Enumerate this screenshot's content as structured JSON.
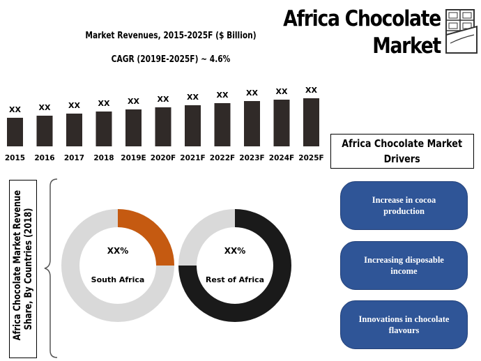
{
  "header": {
    "title_line1": "Africa Chocolate",
    "title_line2": "Market"
  },
  "chart_data": [
    {
      "type": "bar",
      "title": "Market Revenues, 2015-2025F ($ Billion)",
      "subtitle": "CAGR (2019E-2025F) ~ 4.6%",
      "categories": [
        "2015",
        "2016",
        "2017",
        "2018",
        "2019E",
        "2020F",
        "2021F",
        "2022F",
        "2023F",
        "2024F",
        "2025F"
      ],
      "values": [
        41,
        44,
        47,
        50,
        53,
        56,
        59,
        62,
        65,
        67,
        69
      ],
      "data_labels": [
        "XX",
        "XX",
        "XX",
        "XX",
        "XX",
        "XX",
        "XX",
        "XX",
        "XX",
        "XX",
        "XX"
      ],
      "ylim": [
        0,
        100
      ],
      "bar_color": "#302a28"
    },
    {
      "type": "pie",
      "title": "Africa Chocolate Market Revenue Share, By Countries (2018)",
      "donuts": [
        {
          "label": "South Africa",
          "value_label": "XX%",
          "share": 0.25,
          "color": "#c55a11",
          "track_color": "#d9d9d9"
        },
        {
          "label": "Rest of Africa",
          "value_label": "XX%",
          "share": 0.75,
          "color": "#1a1a1a",
          "track_color": "#d9d9d9"
        }
      ]
    }
  ],
  "drivers": {
    "title_line1": "Africa Chocolate Market",
    "title_line2": "Drivers",
    "items": [
      {
        "label": "Increase in cocoa production"
      },
      {
        "label": "Increasing disposable income"
      },
      {
        "label": "Innovations in chocolate flavours"
      }
    ],
    "pill_color": "#2f5597"
  },
  "share": {
    "title_line1": "Africa Chocolate Market Revenue",
    "title_line2": "Share, By Countries (2018)"
  }
}
